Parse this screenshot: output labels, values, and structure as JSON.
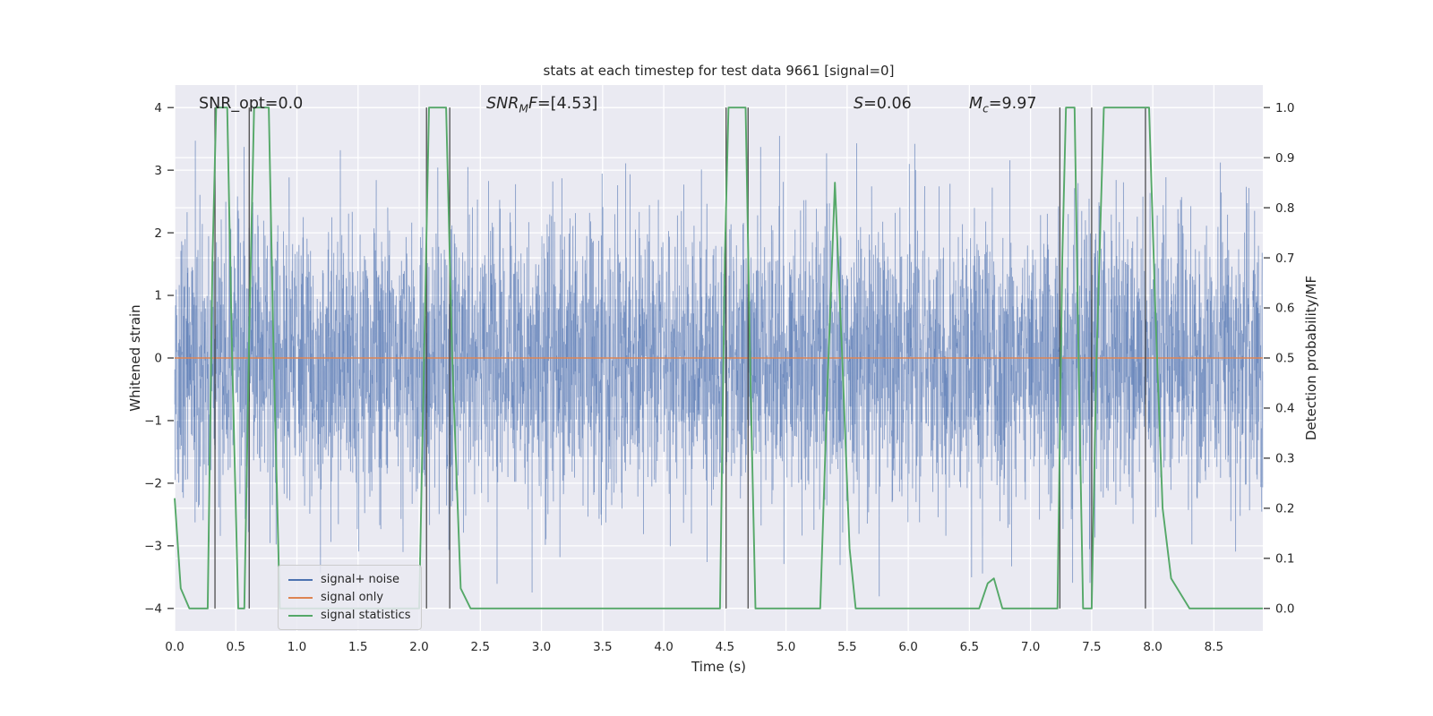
{
  "figure": {
    "title": "stats at each timestep for test data 9661 [signal=0]",
    "xlabel": "Time (s)",
    "ylabel_left": "Whitened strain",
    "ylabel_right": "Detection probability/MF"
  },
  "legend": {
    "entries": [
      {
        "label": "signal+ noise",
        "color": "#4c72b0"
      },
      {
        "label": "signal only",
        "color": "#dd8452"
      },
      {
        "label": "signal statistics",
        "color": "#55a868"
      }
    ]
  },
  "annotations": [
    {
      "text": "SNR_opt=0.0",
      "t": 0.2,
      "parts": [
        {
          "s": "SNR_opt=0.0"
        }
      ]
    },
    {
      "text": "SNR_MF=[4.53]",
      "t": 2.55,
      "parts": [
        {
          "s": "SNR",
          "i": 1
        },
        {
          "s": "M",
          "i": 1,
          "sub": 1
        },
        {
          "s": "F",
          "i": 1
        },
        {
          "s": "=[4.53]"
        }
      ]
    },
    {
      "text": "S=0.06",
      "t": 5.55,
      "parts": [
        {
          "s": "S",
          "i": 1
        },
        {
          "s": "=0.06"
        }
      ]
    },
    {
      "text": "M_c=9.97",
      "t": 6.5,
      "parts": [
        {
          "s": "M",
          "i": 1
        },
        {
          "s": "c",
          "i": 1,
          "sub": 1
        },
        {
          "s": "=9.97"
        }
      ]
    }
  ],
  "chart_data": {
    "type": "line",
    "title": "stats at each timestep for test data 9661 [signal=0]",
    "xlabel": "Time (s)",
    "ylabel_left": "Whitened strain",
    "ylabel_right": "Detection probability/MF",
    "xlim": [
      0,
      8.9
    ],
    "ylim_left": [
      -4.36,
      4.36
    ],
    "ylim_right": [
      -0.045,
      1.045
    ],
    "styles": {
      "axes_bg": "#eaeaf2",
      "grid": "#ffffff",
      "text": "#262626",
      "vline": "#3c3c3c"
    },
    "xticks": {
      "values": [
        0,
        0.5,
        1,
        1.5,
        2,
        2.5,
        3,
        3.5,
        4,
        4.5,
        5,
        5.5,
        6,
        6.5,
        7,
        7.5,
        8,
        8.5
      ],
      "labels": [
        "0.0",
        "0.5",
        "1.0",
        "1.5",
        "2.0",
        "2.5",
        "3.0",
        "3.5",
        "4.0",
        "4.5",
        "5.0",
        "5.5",
        "6.0",
        "6.5",
        "7.0",
        "7.5",
        "8.0",
        "8.5"
      ]
    },
    "yticks_left": {
      "values": [
        -4,
        -3,
        -2,
        -1,
        0,
        1,
        2,
        3,
        4
      ],
      "labels": [
        "−4",
        "−3",
        "−2",
        "−1",
        "0",
        "1",
        "2",
        "3",
        "4"
      ]
    },
    "yticks_right": {
      "values": [
        0,
        0.1,
        0.2,
        0.3,
        0.4,
        0.5,
        0.6,
        0.7,
        0.8,
        0.9,
        1.0
      ],
      "labels": [
        "0.0",
        "0.1",
        "0.2",
        "0.3",
        "0.4",
        "0.5",
        "0.6",
        "0.7",
        "0.8",
        "0.9",
        "1.0"
      ]
    },
    "series": [
      {
        "name": "signal+ noise",
        "kind": "gaussian_noise",
        "axis": "left",
        "color": "#4c72b0",
        "opacity": 0.38,
        "n": 5000,
        "std": 1.1,
        "clip": 4.0,
        "seed": 9661
      },
      {
        "name": "signal only",
        "kind": "constant",
        "axis": "left",
        "color": "#dd8452",
        "value": 0
      },
      {
        "name": "signal statistics",
        "kind": "keypoints",
        "axis": "right",
        "color": "#55a868",
        "points": [
          [
            0,
            0.22
          ],
          [
            0.05,
            0.04
          ],
          [
            0.12,
            0
          ],
          [
            0.27,
            0
          ],
          [
            0.31,
            0.7
          ],
          [
            0.34,
            1
          ],
          [
            0.43,
            1
          ],
          [
            0.47,
            0.5
          ],
          [
            0.52,
            0
          ],
          [
            0.57,
            0
          ],
          [
            0.61,
            0.55
          ],
          [
            0.65,
            1
          ],
          [
            0.77,
            1
          ],
          [
            0.81,
            0.5
          ],
          [
            0.86,
            0
          ],
          [
            2.0,
            0
          ],
          [
            2.04,
            0.5
          ],
          [
            2.08,
            1
          ],
          [
            2.22,
            1
          ],
          [
            2.27,
            0.5
          ],
          [
            2.34,
            0.04
          ],
          [
            2.42,
            0
          ],
          [
            4.46,
            0
          ],
          [
            4.5,
            0.7
          ],
          [
            4.53,
            1
          ],
          [
            4.67,
            1
          ],
          [
            4.71,
            0.45
          ],
          [
            4.75,
            0
          ],
          [
            5.28,
            0
          ],
          [
            5.34,
            0.45
          ],
          [
            5.4,
            0.85
          ],
          [
            5.46,
            0.5
          ],
          [
            5.52,
            0.12
          ],
          [
            5.57,
            0
          ],
          [
            6.58,
            0
          ],
          [
            6.65,
            0.05
          ],
          [
            6.7,
            0.06
          ],
          [
            6.77,
            0
          ],
          [
            7.22,
            0
          ],
          [
            7.26,
            0.7
          ],
          [
            7.29,
            1
          ],
          [
            7.36,
            1
          ],
          [
            7.4,
            0.4
          ],
          [
            7.43,
            0
          ],
          [
            7.5,
            0
          ],
          [
            7.54,
            0.5
          ],
          [
            7.6,
            1
          ],
          [
            7.97,
            1
          ],
          [
            8.02,
            0.6
          ],
          [
            8.08,
            0.2
          ],
          [
            8.15,
            0.06
          ],
          [
            8.3,
            0
          ],
          [
            8.9,
            0
          ]
        ]
      }
    ],
    "vlines": {
      "times": [
        0.33,
        0.61,
        2.06,
        2.25,
        4.51,
        4.69,
        7.24,
        7.5,
        7.94
      ],
      "color": "#3c3c3c"
    }
  }
}
